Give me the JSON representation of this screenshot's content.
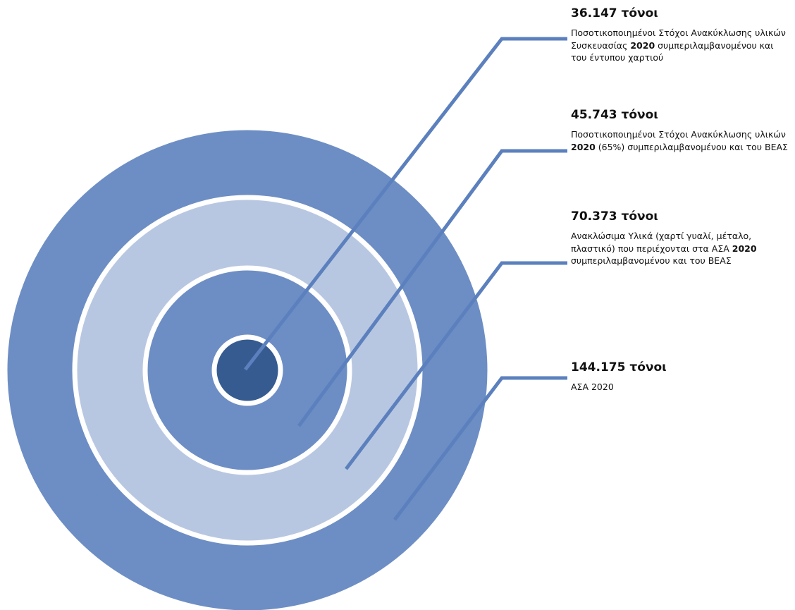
{
  "colors": {
    "outer_ring": "#6d8ec4",
    "second_ring": "#b8c7e1",
    "third_ring": "#6d8ec4",
    "core": "#355b91",
    "ring_separator": "#ffffff",
    "leader_line": "#5b80bd"
  },
  "tiers": [
    {
      "amount": "36.147 τόνοι",
      "desc": [
        {
          "text": "Ποσοτικοποιημένοι Στόχοι Ανακύκλωσης υλικών Συσκευασίας ",
          "bold": false
        },
        {
          "text": "2020",
          "bold": true
        },
        {
          "text": "  συμπεριλαμβανομένου και του έντυπου χαρτιού",
          "bold": false
        }
      ]
    },
    {
      "amount": "45.743 τόνοι",
      "desc": [
        {
          "text": "Ποσοτικοποιημένοι Στόχοι Ανακύκλωσης υλικών ",
          "bold": false
        },
        {
          "text": "2020",
          "bold": true
        },
        {
          "text": " (65%) συμπεριλαμβανομένου και του ΒΕΑΣ",
          "bold": false
        }
      ]
    },
    {
      "amount": "70.373 τόνοι",
      "desc": [
        {
          "text": "Ανακλώσιμα Υλικά (χαρτί γυαλί, μέταλο, πλαστικό) που περιέχονται στα ΑΣΑ ",
          "bold": false
        },
        {
          "text": "2020",
          "bold": true
        },
        {
          "text": " συμπεριλαμβανομένου και του ΒΕΑΣ",
          "bold": false
        }
      ]
    },
    {
      "amount": "144.175  τόνοι",
      "desc": [
        {
          "text": "ΑΣΑ 2020",
          "bold": false
        }
      ]
    }
  ]
}
